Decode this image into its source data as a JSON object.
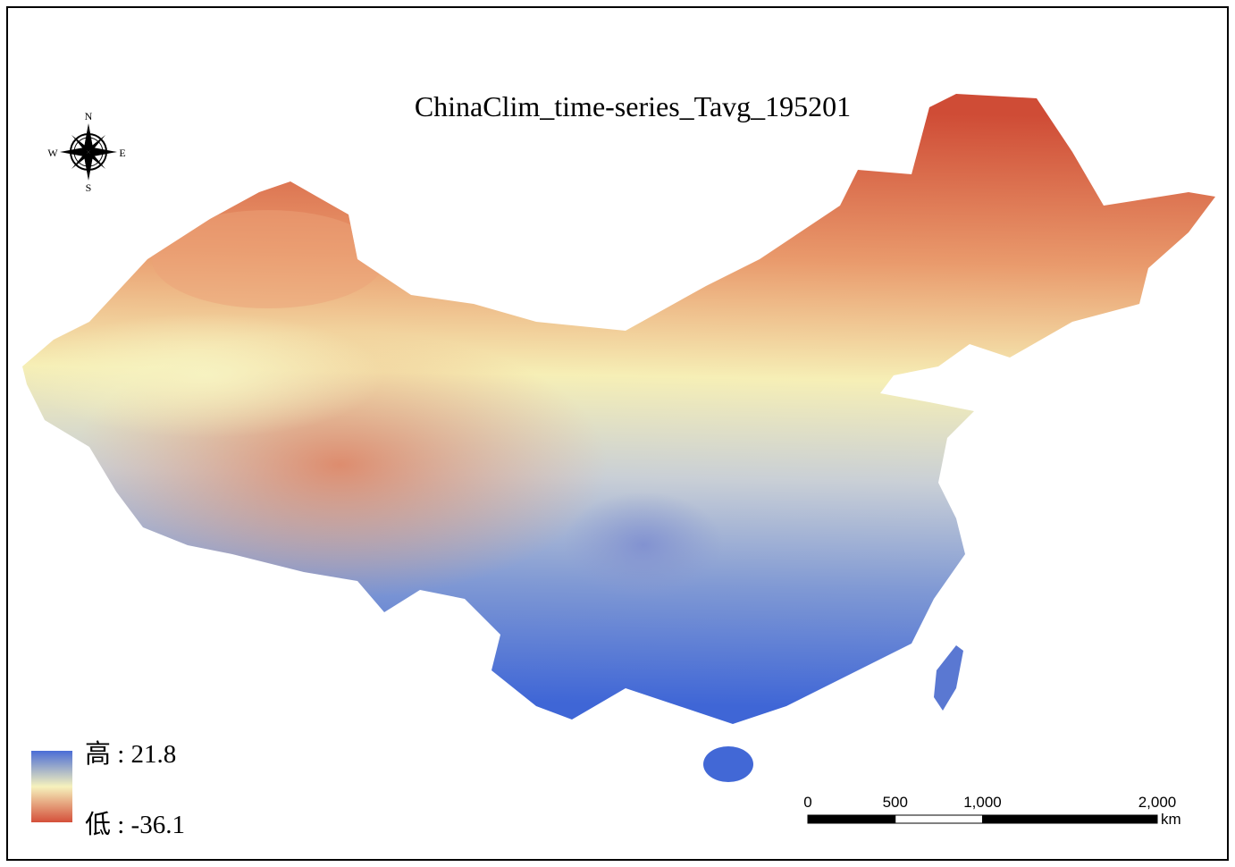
{
  "title": "ChinaClim_time-series_Tavg_195201",
  "compass": {
    "n": "N",
    "s": "S",
    "e": "E",
    "w": "W"
  },
  "legend": {
    "high": "高 : 21.8",
    "low": "低 : -36.1"
  },
  "scale_bar": {
    "ticks": [
      0,
      500,
      {
        "value": 1000,
        "label": "1,000"
      },
      {
        "value": 2000,
        "label": "2,000"
      }
    ],
    "unit": "km"
  }
}
